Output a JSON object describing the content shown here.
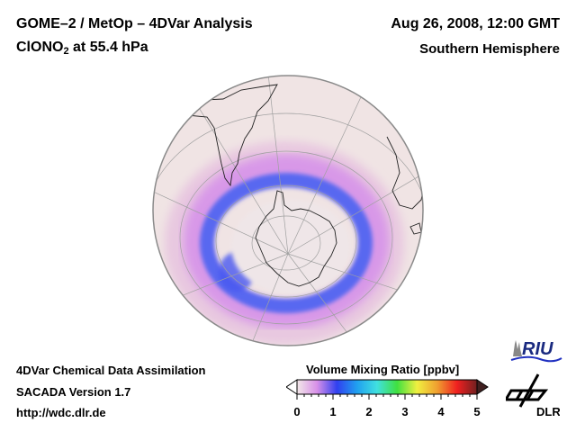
{
  "header": {
    "title_line1": "GOME–2 / MetOp – 4DVar Analysis",
    "species_main": "ClONO",
    "species_sub": "2",
    "species_rest": " at 55.4 hPa",
    "date": "Aug 26, 2008, 12:00 GMT",
    "region": "Southern Hemisphere"
  },
  "footer": {
    "line1": "4DVar Chemical Data Assimilation",
    "line2": "SACADA Version 1.7",
    "line3": "http://wdc.dlr.de"
  },
  "colorbar": {
    "title": "Volume Mixing Ratio [ppbv]",
    "min": 0,
    "max": 5,
    "ticks": [
      "0",
      "1",
      "2",
      "3",
      "4",
      "5"
    ],
    "colors": [
      "#f2e8e8",
      "#d890e8",
      "#3040f0",
      "#20a0f0",
      "#40e0e0",
      "#40e040",
      "#f0f040",
      "#f0a030",
      "#f02020",
      "#702020"
    ]
  },
  "map": {
    "projection": "orthographic",
    "center": "South Pole",
    "background_color": "#f0e4e4",
    "ring_color": "#5060f0",
    "ring_halo_color": "#d8a0e8"
  },
  "logos": {
    "riu_label": "RIU",
    "dlr_label": "DLR"
  }
}
